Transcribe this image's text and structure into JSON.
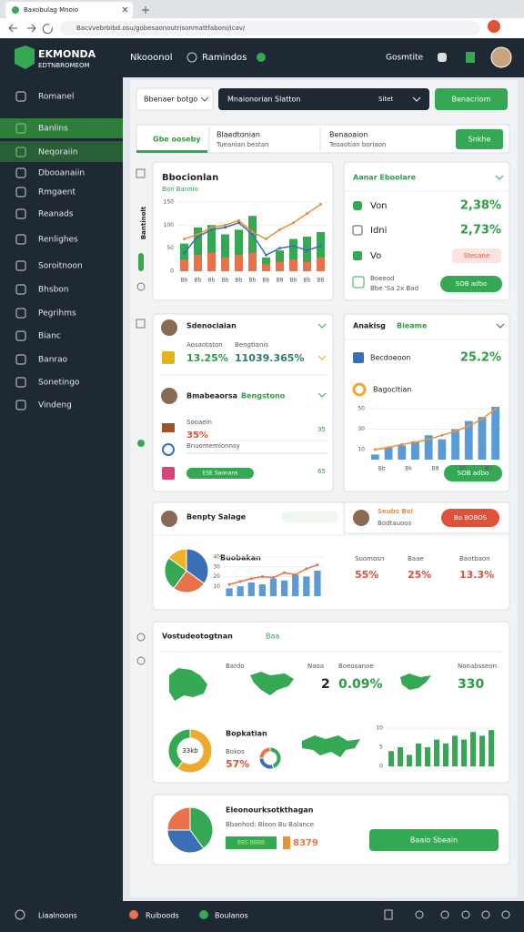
{
  "browser": {
    "tab": "Baxobulag Mnoio",
    "url": "Bacvvebrbibd.osu/gobesaonoutrisonmattfaboni/icav/"
  },
  "header": {
    "logo": "EKMONDA",
    "logo_sub": "EDTNBROMEOM",
    "nav": [
      "Nkooonol",
      "Ramindos"
    ],
    "user": "Gosmtite"
  },
  "sidebar": {
    "items": [
      "Romanel",
      "Banlins",
      "Neqoraiin",
      "Dbooanaiin",
      "Rmgaent",
      "Reanads",
      "Renlighes",
      "Soroitnoon",
      "Bhsbon",
      "Pegrihms",
      "Bianc",
      "Banrao",
      "Sonetingo",
      "Vindeng"
    ]
  },
  "toolbar": {
    "select": "Bbenaer botgo",
    "search": "Mnaionorian Slatton",
    "search_hint": "Sitet",
    "button": "Benacriom"
  },
  "tabs": {
    "active": "Gbe ooseby",
    "second": "Blaedtonian",
    "second_sub": "Tueanian bestan",
    "third": "Benaoaion",
    "third_sub": "Teoaotian boriaon",
    "button": "Snkhe"
  },
  "card_a": {
    "title": "Bbocionlan",
    "subtitle": "Bon Bannio",
    "side_label": "Bantinolt",
    "chart": {
      "ylim": [
        0,
        150
      ],
      "yticks": [
        0,
        50,
        100,
        150
      ],
      "x_labels": [
        "Bb",
        "Bb",
        "8b",
        "Bb",
        "Bb",
        "Bb",
        "Bb",
        "B8",
        "Bb",
        "Bb",
        "BB"
      ],
      "bars": {
        "color": "#34a853",
        "values": [
          60,
          95,
          100,
          80,
          90,
          120,
          30,
          45,
          70,
          75,
          85
        ]
      },
      "bars_low": {
        "color": "#e8734a",
        "values": [
          25,
          35,
          40,
          30,
          35,
          40,
          15,
          20,
          25,
          20,
          30
        ]
      },
      "lines": [
        {
          "color": "#e8923a",
          "values": [
            70,
            80,
            95,
            100,
            110,
            85,
            70,
            90,
            105,
            125,
            145
          ]
        },
        {
          "color": "#3a6fb5",
          "values": [
            40,
            75,
            90,
            95,
            105,
            80,
            35,
            50,
            55,
            45,
            55
          ]
        }
      ]
    }
  },
  "card_b": {
    "title": "Aanar Eboolare",
    "rows": [
      {
        "label": "Von",
        "value": "2,38%"
      },
      {
        "label": "Idni",
        "value": "2,73%"
      },
      {
        "label": "Vo",
        "pill": "Stecane"
      }
    ],
    "foot": "Boeeod",
    "foot_sub": "Bbe 'Sa 2x Bad",
    "button": "SOB adbo"
  },
  "card_c": {
    "title": "Sdenociaian",
    "col1": "Aosaotaton",
    "col2": "Bengtianis",
    "val1": "13.25%",
    "val2": "11039.365%",
    "title2": "Bmabeaorsa",
    "title2_tag": "Bengstono",
    "row3_label": "Sooaein",
    "row3_value": "35%",
    "row3_side": "35",
    "row4_label": "Bnuomemlonnsy",
    "row5_pill": "ESE Saonans",
    "row5_side": "65"
  },
  "card_d": {
    "title": "Anakisg",
    "title_tag": "Bieame",
    "row_label": "Becdoeoon",
    "row_value": "25.2%",
    "sub": "Bagocltian",
    "button": "SOB adbo",
    "chart": {
      "ylim": [
        0,
        60
      ],
      "yticks": [
        10,
        30,
        50
      ],
      "x_labels": [
        "Bb",
        "Bk",
        "B8",
        "20",
        "Bo"
      ],
      "bars": {
        "color": "#5b9bd5",
        "values": [
          5,
          12,
          14,
          18,
          24,
          20,
          30,
          38,
          42,
          52
        ]
      },
      "lines": [
        {
          "color": "#e8923a",
          "values": [
            10,
            12,
            15,
            17,
            20,
            24,
            28,
            33,
            40,
            50
          ]
        }
      ]
    }
  },
  "card_e": {
    "title": "Benpty Salage",
    "side_title": "Seubs Bel",
    "side_sub": "Bodtauoos",
    "side_button": "Bo BOBOS",
    "chart_title": "Buobakan",
    "pie": {
      "values": [
        35,
        25,
        25,
        15
      ],
      "colors": [
        "#3a6fb5",
        "#e8734a",
        "#34a853",
        "#f0b429"
      ]
    },
    "chart": {
      "ylim": [
        0,
        40
      ],
      "yticks": [
        10,
        20,
        30,
        40
      ],
      "bars": {
        "color": "#5b9bd5",
        "values": [
          8,
          10,
          14,
          12,
          18,
          16,
          22,
          20,
          26
        ]
      },
      "lines": [
        {
          "color": "#e8734a",
          "values": [
            12,
            15,
            18,
            20,
            19,
            24,
            22,
            28,
            32
          ]
        }
      ]
    },
    "stats": [
      {
        "label": "Suomosn",
        "value": "55%"
      },
      {
        "label": "Baae",
        "value": "25%"
      },
      {
        "label": "Baotbaon",
        "value": "13.3%"
      }
    ]
  },
  "card_f": {
    "title": "Vostudeotogtnan",
    "title_tag": "Baa",
    "labels": [
      "Bardo",
      "Naoa",
      "Boeosanoe",
      "Nonabsseon"
    ],
    "val_a": "2",
    "val_b": "0.09%",
    "val_c": "330",
    "donut": {
      "values": [
        60,
        40
      ],
      "colors": [
        "#f0a92f",
        "#34a853"
      ],
      "label": "33kb"
    },
    "sub_title": "Bopkatian",
    "sub_label": "Bokos",
    "sub_value": "57%",
    "small_donut": {
      "values": [
        45,
        30,
        25
      ],
      "colors": [
        "#34a853",
        "#3a6fb5",
        "#e8734a"
      ]
    },
    "chart": {
      "ylim": [
        0,
        10
      ],
      "yticks": [
        0,
        5,
        10
      ],
      "bars": {
        "color": "#34a853",
        "values": [
          4,
          5,
          3,
          6,
          5,
          7,
          6,
          8,
          7,
          9,
          8,
          9.5
        ]
      }
    }
  },
  "card_g": {
    "title": "Eleonourksotkthagan",
    "sub": "Bbanhod: Bloon Bu Balance",
    "pill": "BBS BBBB",
    "value": "8379",
    "button": "Baaio Sbeain",
    "pie": {
      "values": [
        40,
        35,
        25
      ],
      "colors": [
        "#34a853",
        "#3a6fb5",
        "#e8734a"
      ]
    }
  },
  "footer": {
    "items": [
      "Liaalnoons",
      "Ruiboods",
      "Boulanos"
    ]
  }
}
